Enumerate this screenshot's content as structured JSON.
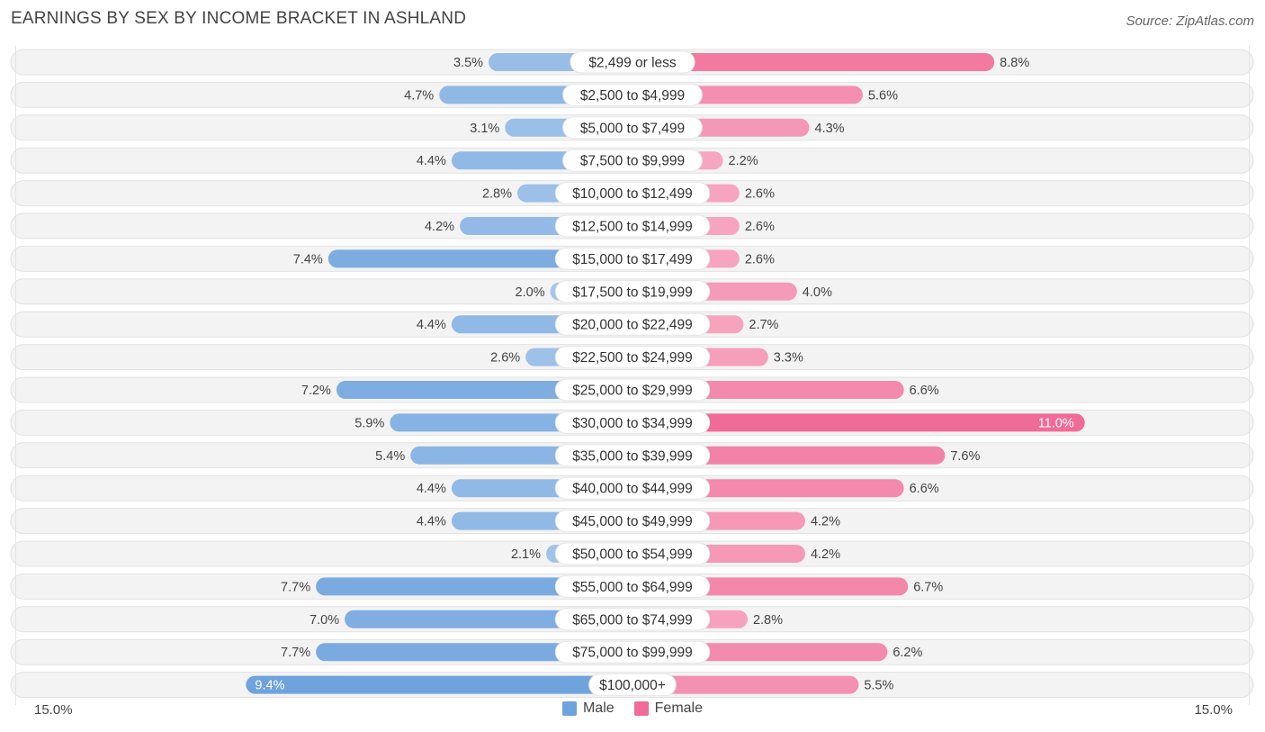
{
  "title": "EARNINGS BY SEX BY INCOME BRACKET IN ASHLAND",
  "source": "Source: ZipAtlas.com",
  "colors": {
    "male": "#6fa3de",
    "female": "#f06b97"
  },
  "chart_data": {
    "type": "bar",
    "orientation": "horizontal-diverging",
    "title": "EARNINGS BY SEX BY INCOME BRACKET IN ASHLAND",
    "xlim": [
      -15,
      15
    ],
    "axis_labels": {
      "left": "15.0%",
      "right": "15.0%"
    },
    "legend": [
      "Male",
      "Female"
    ],
    "legend_position": "bottom-center",
    "categories": [
      "$2,499 or less",
      "$2,500 to $4,999",
      "$5,000 to $7,499",
      "$7,500 to $9,999",
      "$10,000 to $12,499",
      "$12,500 to $14,999",
      "$15,000 to $17,499",
      "$17,500 to $19,999",
      "$20,000 to $22,499",
      "$22,500 to $24,999",
      "$25,000 to $29,999",
      "$30,000 to $34,999",
      "$35,000 to $39,999",
      "$40,000 to $44,999",
      "$45,000 to $49,999",
      "$50,000 to $54,999",
      "$55,000 to $64,999",
      "$65,000 to $74,999",
      "$75,000 to $99,999",
      "$100,000+"
    ],
    "series": [
      {
        "name": "Male",
        "values": [
          3.5,
          4.7,
          3.1,
          4.4,
          2.8,
          4.2,
          7.4,
          2.0,
          4.4,
          2.6,
          7.2,
          5.9,
          5.4,
          4.4,
          4.4,
          2.1,
          7.7,
          7.0,
          7.7,
          9.4
        ]
      },
      {
        "name": "Female",
        "values": [
          8.8,
          5.6,
          4.3,
          2.2,
          2.6,
          2.6,
          2.6,
          4.0,
          2.7,
          3.3,
          6.6,
          11.0,
          7.6,
          6.6,
          4.2,
          4.2,
          6.7,
          2.8,
          6.2,
          5.5
        ]
      }
    ],
    "value_labels": {
      "Male": [
        "3.5%",
        "4.7%",
        "3.1%",
        "4.4%",
        "2.8%",
        "4.2%",
        "7.4%",
        "2.0%",
        "4.4%",
        "2.6%",
        "7.2%",
        "5.9%",
        "5.4%",
        "4.4%",
        "4.4%",
        "2.1%",
        "7.7%",
        "7.0%",
        "7.7%",
        "9.4%"
      ],
      "Female": [
        "8.8%",
        "5.6%",
        "4.3%",
        "2.2%",
        "2.6%",
        "2.6%",
        "2.6%",
        "4.0%",
        "2.7%",
        "3.3%",
        "6.6%",
        "11.0%",
        "7.6%",
        "6.6%",
        "4.2%",
        "4.2%",
        "6.7%",
        "2.8%",
        "6.2%",
        "5.5%"
      ]
    }
  }
}
